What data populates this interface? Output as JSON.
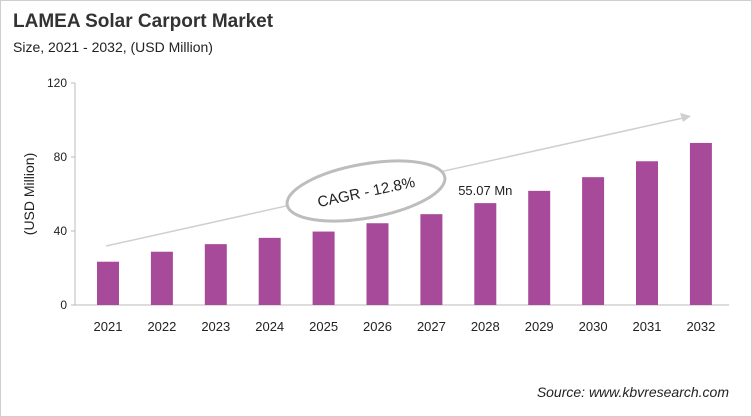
{
  "chart_data": {
    "type": "bar",
    "title": "LAMEA Solar Carport  Market",
    "subtitle": "Size, 2021 - 2032, (USD Million)",
    "xlabel": "",
    "ylabel": "(USD Million)",
    "categories": [
      "2021",
      "2022",
      "2023",
      "2024",
      "2025",
      "2026",
      "2027",
      "2028",
      "2029",
      "2030",
      "2031",
      "2032"
    ],
    "values": [
      23.4,
      28.8,
      32.9,
      36.3,
      39.7,
      44.2,
      49.1,
      55.07,
      61.7,
      69.1,
      77.7,
      87.6
    ],
    "ylim": [
      0,
      120
    ],
    "yticks": [
      0,
      40,
      80,
      120
    ],
    "grid": false,
    "bar_color": "#A84A9A",
    "annotations": {
      "data_label": "55.07 Mn",
      "data_label_category": "2028",
      "cagr": "CAGR - 12.8%"
    },
    "source": "Source: www.kbvresearch.com"
  }
}
